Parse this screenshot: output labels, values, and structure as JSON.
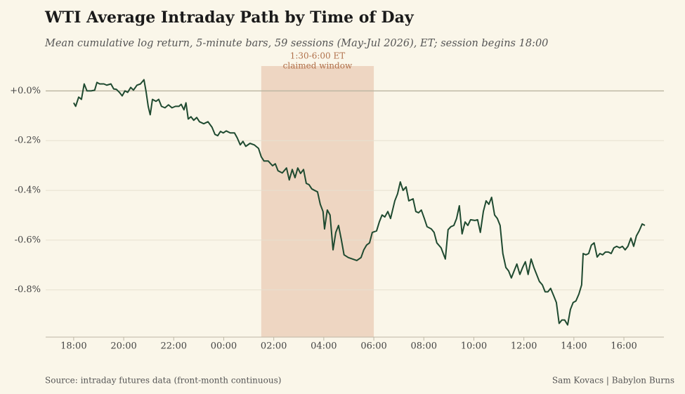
{
  "chart_data": {
    "type": "line",
    "title": "WTI Average Intraday Path by Time of Day",
    "subtitle": "Mean cumulative log return, 5-minute bars, 59 sessions (May-Jul 2026), ET; session begins 18:00",
    "source": "Source: intraday futures data (front-month continuous)",
    "credit": "Sam Kovacs | Babylon Burns",
    "window": {
      "x": [
        7.5,
        12
      ],
      "label": [
        "1:30-6:00 ET",
        "claimed window"
      ],
      "color": "#e8c9b0"
    },
    "color": "#1f4a30",
    "grid": true,
    "xlim": [
      -1.12,
      23.6
    ],
    "ylim": [
      -0.99,
      0.1
    ],
    "xticks": [
      {
        "value": 0,
        "label": "18:00"
      },
      {
        "value": 2,
        "label": "20:00"
      },
      {
        "value": 4,
        "label": "22:00"
      },
      {
        "value": 6,
        "label": "00:00"
      },
      {
        "value": 8,
        "label": "02:00"
      },
      {
        "value": 10,
        "label": "04:00"
      },
      {
        "value": 12,
        "label": "06:00"
      },
      {
        "value": 14,
        "label": "08:00"
      },
      {
        "value": 16,
        "label": "10:00"
      },
      {
        "value": 18,
        "label": "12:00"
      },
      {
        "value": 20,
        "label": "14:00"
      },
      {
        "value": 22,
        "label": "16:00"
      }
    ],
    "yticks": [
      {
        "value": 0,
        "label": "+0.0%"
      },
      {
        "value": -0.2,
        "label": "-0.2%"
      },
      {
        "value": -0.4,
        "label": "-0.4%"
      },
      {
        "value": -0.6,
        "label": "-0.6%"
      },
      {
        "value": -0.8,
        "label": "-0.8%"
      }
    ],
    "x": [
      0.0,
      0.08,
      0.2,
      0.31,
      0.42,
      0.53,
      0.7,
      0.84,
      0.93,
      1.04,
      1.21,
      1.32,
      1.49,
      1.6,
      1.71,
      1.83,
      1.94,
      2.05,
      2.16,
      2.28,
      2.39,
      2.53,
      2.67,
      2.81,
      2.89,
      2.98,
      3.06,
      3.15,
      3.29,
      3.4,
      3.51,
      3.65,
      3.79,
      3.93,
      4.07,
      4.21,
      4.3,
      4.41,
      4.49,
      4.58,
      4.69,
      4.8,
      4.92,
      5.03,
      5.2,
      5.37,
      5.53,
      5.65,
      5.76,
      5.87,
      5.98,
      6.1,
      6.26,
      6.43,
      6.54,
      6.66,
      6.77,
      6.88,
      7.05,
      7.22,
      7.39,
      7.5,
      7.61,
      7.78,
      7.95,
      8.06,
      8.17,
      8.34,
      8.51,
      8.62,
      8.74,
      8.85,
      8.96,
      9.07,
      9.19,
      9.3,
      9.41,
      9.52,
      9.63,
      9.75,
      9.86,
      9.97,
      10.03,
      10.14,
      10.25,
      10.37,
      10.48,
      10.59,
      10.7,
      10.81,
      10.98,
      11.15,
      11.32,
      11.49,
      11.6,
      11.71,
      11.83,
      11.94,
      12.11,
      12.22,
      12.33,
      12.44,
      12.56,
      12.67,
      12.84,
      12.95,
      13.06,
      13.17,
      13.29,
      13.4,
      13.57,
      13.68,
      13.79,
      13.9,
      14.02,
      14.13,
      14.3,
      14.41,
      14.52,
      14.69,
      14.86,
      14.97,
      15.08,
      15.2,
      15.31,
      15.42,
      15.53,
      15.65,
      15.76,
      15.87,
      16.04,
      16.15,
      16.26,
      16.38,
      16.49,
      16.6,
      16.71,
      16.83,
      16.94,
      17.05,
      17.16,
      17.28,
      17.39,
      17.5,
      17.61,
      17.72,
      17.84,
      17.95,
      18.06,
      18.17,
      18.29,
      18.4,
      18.51,
      18.62,
      18.74,
      18.85,
      18.96,
      19.07,
      19.19,
      19.3,
      19.41,
      19.52,
      19.63,
      19.75,
      19.86,
      19.97,
      20.08,
      20.2,
      20.31,
      20.37,
      20.48,
      20.59,
      20.7,
      20.81,
      20.93,
      21.04,
      21.15,
      21.26,
      21.38,
      21.49,
      21.6,
      21.71,
      21.83,
      21.94,
      22.05,
      22.16,
      22.28,
      22.39,
      22.5,
      22.61,
      22.73,
      22.84
    ],
    "values": [
      -0.048,
      -0.062,
      -0.025,
      -0.034,
      0.028,
      0.0,
      0.0,
      0.003,
      0.034,
      0.028,
      0.028,
      0.023,
      0.028,
      0.008,
      0.006,
      -0.006,
      -0.02,
      0.0,
      -0.006,
      0.014,
      0.003,
      0.023,
      0.028,
      0.045,
      0.0,
      -0.062,
      -0.096,
      -0.034,
      -0.042,
      -0.034,
      -0.062,
      -0.068,
      -0.056,
      -0.068,
      -0.062,
      -0.062,
      -0.054,
      -0.076,
      -0.048,
      -0.113,
      -0.104,
      -0.118,
      -0.107,
      -0.124,
      -0.132,
      -0.124,
      -0.146,
      -0.175,
      -0.18,
      -0.163,
      -0.169,
      -0.161,
      -0.169,
      -0.169,
      -0.189,
      -0.217,
      -0.203,
      -0.223,
      -0.211,
      -0.217,
      -0.231,
      -0.265,
      -0.282,
      -0.282,
      -0.301,
      -0.293,
      -0.321,
      -0.33,
      -0.31,
      -0.358,
      -0.316,
      -0.349,
      -0.31,
      -0.332,
      -0.316,
      -0.372,
      -0.377,
      -0.394,
      -0.4,
      -0.406,
      -0.456,
      -0.485,
      -0.555,
      -0.479,
      -0.499,
      -0.639,
      -0.569,
      -0.541,
      -0.597,
      -0.659,
      -0.67,
      -0.676,
      -0.682,
      -0.67,
      -0.639,
      -0.62,
      -0.611,
      -0.569,
      -0.563,
      -0.527,
      -0.499,
      -0.507,
      -0.485,
      -0.513,
      -0.442,
      -0.414,
      -0.366,
      -0.4,
      -0.386,
      -0.442,
      -0.434,
      -0.485,
      -0.49,
      -0.479,
      -0.513,
      -0.546,
      -0.555,
      -0.569,
      -0.611,
      -0.631,
      -0.676,
      -0.558,
      -0.546,
      -0.541,
      -0.513,
      -0.462,
      -0.575,
      -0.527,
      -0.541,
      -0.518,
      -0.521,
      -0.518,
      -0.569,
      -0.485,
      -0.442,
      -0.456,
      -0.428,
      -0.499,
      -0.513,
      -0.541,
      -0.654,
      -0.71,
      -0.724,
      -0.752,
      -0.724,
      -0.696,
      -0.738,
      -0.71,
      -0.687,
      -0.738,
      -0.676,
      -0.71,
      -0.738,
      -0.766,
      -0.78,
      -0.808,
      -0.808,
      -0.794,
      -0.823,
      -0.851,
      -0.935,
      -0.921,
      -0.921,
      -0.941,
      -0.879,
      -0.851,
      -0.845,
      -0.817,
      -0.78,
      -0.654,
      -0.659,
      -0.654,
      -0.62,
      -0.611,
      -0.668,
      -0.654,
      -0.659,
      -0.648,
      -0.648,
      -0.654,
      -0.631,
      -0.625,
      -0.631,
      -0.625,
      -0.639,
      -0.625,
      -0.592,
      -0.625,
      -0.583,
      -0.563,
      -0.535,
      -0.541
    ]
  }
}
